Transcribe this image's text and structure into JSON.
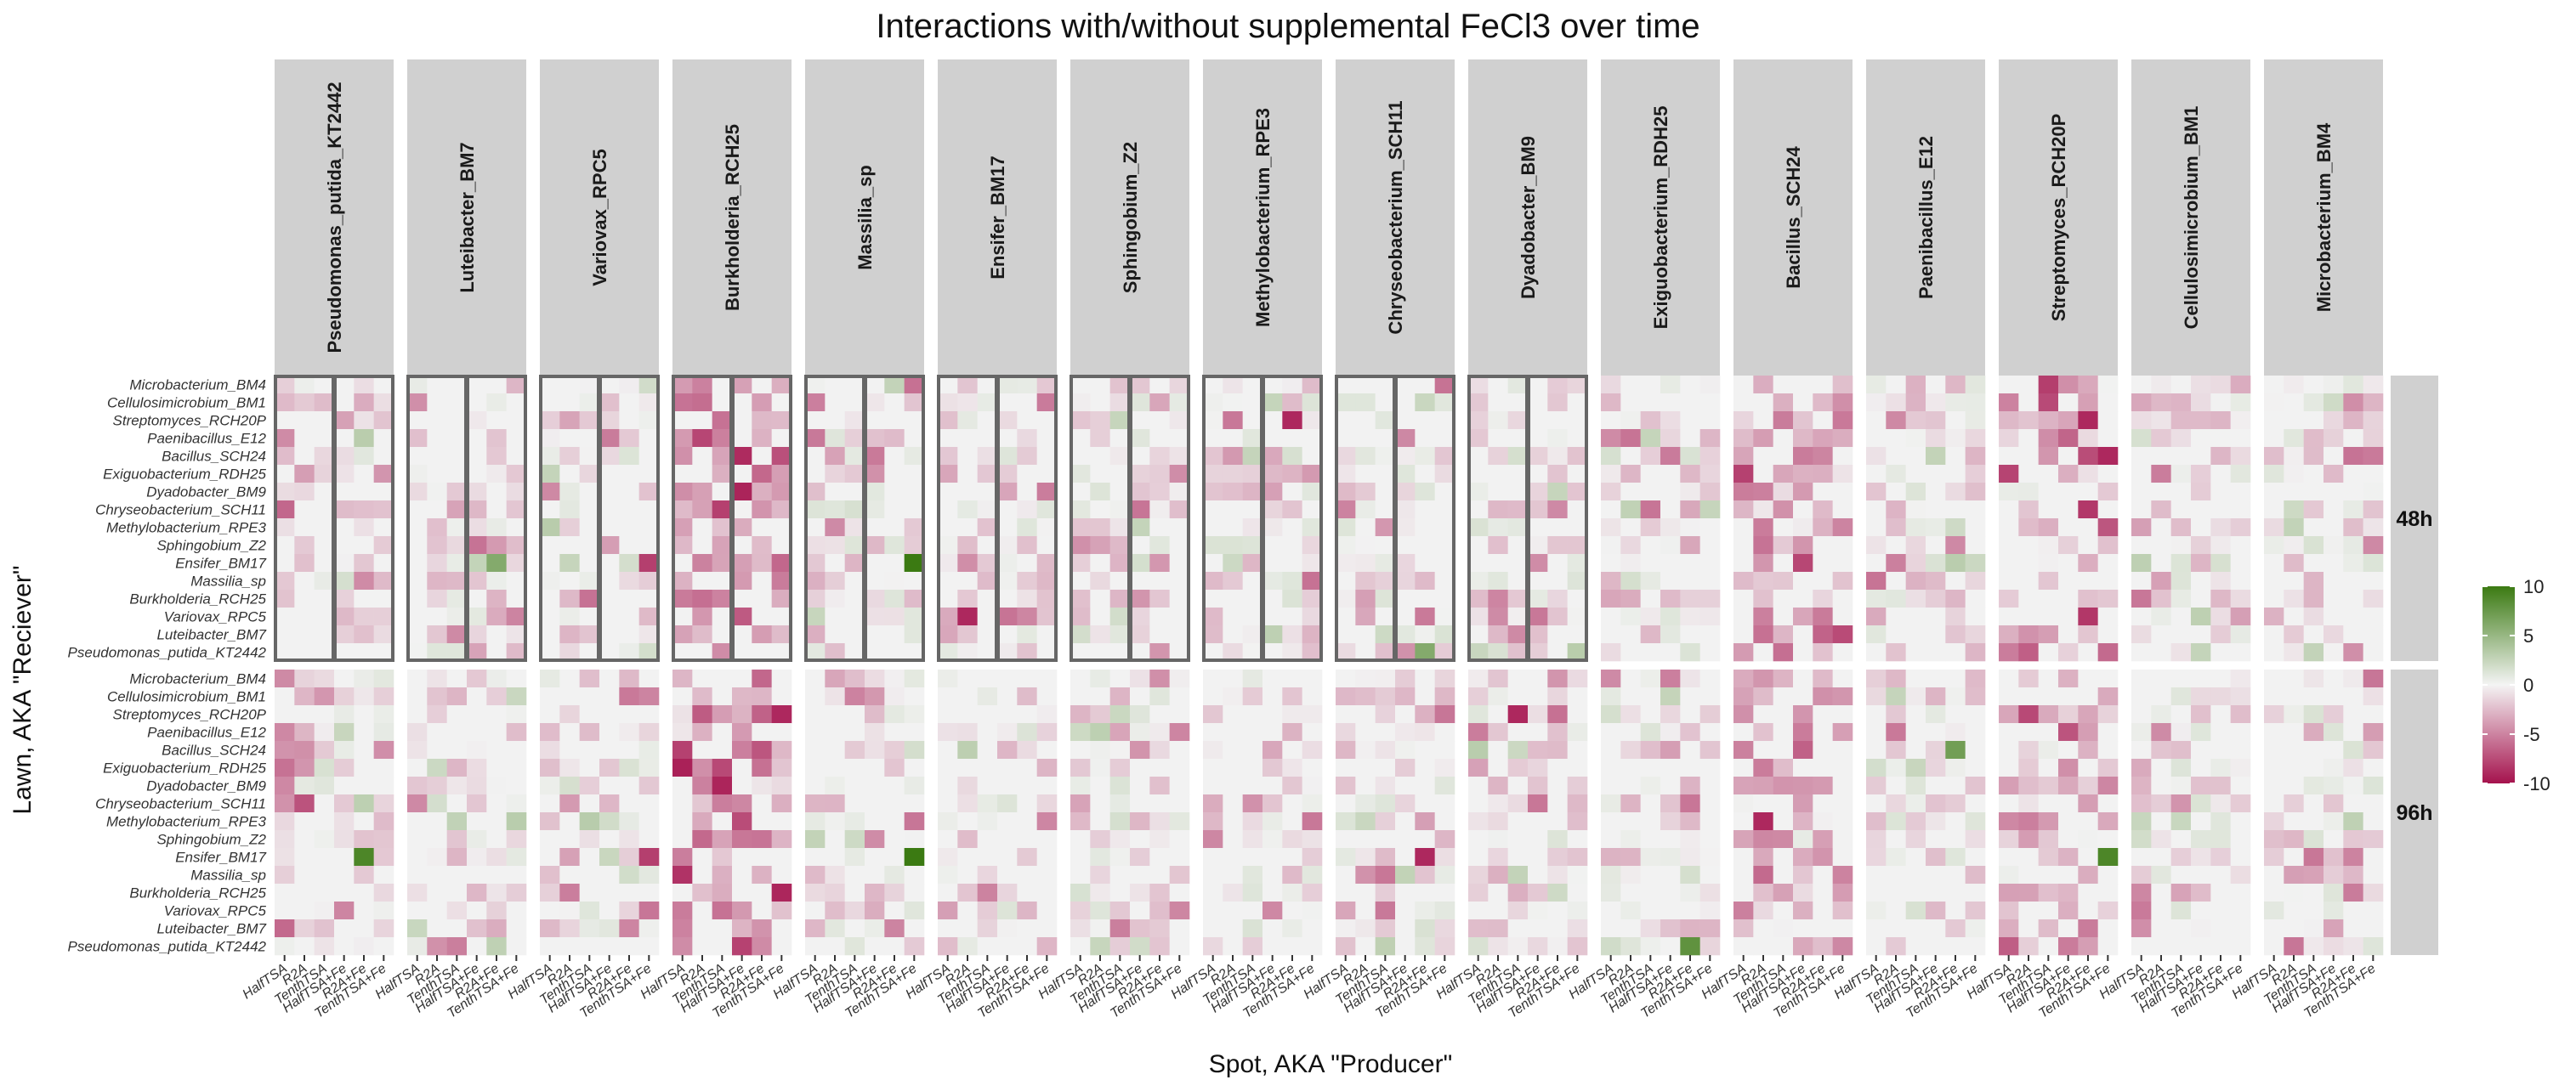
{
  "chart_data": {
    "type": "heatmap",
    "title": "Interactions with/without supplemental FeCl3 over time",
    "xlabel": "Spot, AKA \"Producer\"",
    "ylabel": "Lawn, AKA \"Reciever\"",
    "producers": [
      "Pseudomonas_putida_KT2442",
      "Luteibacter_BM7",
      "Variovax_RPC5",
      "Burkholderia_RCH25",
      "Massilia_sp",
      "Ensifer_BM17",
      "Sphingobium_Z2",
      "Methylobacterium_RPE3",
      "Chryseobacterium_SCH11",
      "Dyadobacter_BM9",
      "Exiguobacterium_RDH25",
      "Bacillus_SCH24",
      "Paenibacillus_E12",
      "Streptomyces_RCH20P",
      "Cellulosimicrobium_BM1",
      "Microbacterium_BM4"
    ],
    "conditions": [
      "HalfTSA",
      "R2A",
      "TenthTSA",
      "HalfTSA+Fe",
      "R2A+Fe",
      "TenthTSA+Fe"
    ],
    "receivers": [
      "Microbacterium_BM4",
      "Cellulosimicrobium_BM1",
      "Streptomyces_RCH20P",
      "Paenibacillus_E12",
      "Bacillus_SCH24",
      "Exiguobacterium_RDH25",
      "Dyadobacter_BM9",
      "Chryseobacterium_SCH11",
      "Methylobacterium_RPE3",
      "Sphingobium_Z2",
      "Ensifer_BM17",
      "Massilia_sp",
      "Burkholderia_RCH25",
      "Variovax_RPC5",
      "Luteibacter_BM7",
      "Pseudomonas_putida_KT2442"
    ],
    "timepoints": [
      "48h",
      "96h"
    ],
    "legend": {
      "position": "right",
      "min": -10,
      "max": 10,
      "ticks": [
        "10",
        "5",
        "0",
        "-5",
        "-10"
      ],
      "low_color": "#A5124D",
      "mid_color": "#F2F2F2",
      "high_color": "#3B7A12"
    },
    "boxed_panels_48h": [
      0,
      1,
      2,
      3,
      4,
      5,
      6,
      7,
      8,
      9
    ],
    "boxed_groups": [
      "HalfTSA, R2A, TenthTSA",
      "HalfTSA+Fe, R2A+Fe, TenthTSA+Fe"
    ],
    "highlighted_cells": [
      {
        "timepoint": "48h",
        "producer": "Methylobacterium_RPE3",
        "receiver": "Streptomyces_RCH20P",
        "condition": "R2A+Fe",
        "value": -9
      },
      {
        "timepoint": "48h",
        "producer": "Ensifer_BM17",
        "receiver": "Variovax_RPC5",
        "condition": "R2A",
        "value": -9
      },
      {
        "timepoint": "48h",
        "producer": "Massilia_sp",
        "receiver": "Ensifer_BM17",
        "condition": "TenthTSA+Fe",
        "value": 10
      },
      {
        "timepoint": "48h",
        "producer": "Luteibacter_BM7",
        "receiver": "Ensifer_BM17",
        "condition": "R2A+Fe",
        "value": 6
      },
      {
        "timepoint": "48h",
        "producer": "Variovax_RPC5",
        "receiver": "Ensifer_BM17",
        "condition": "TenthTSA+Fe",
        "value": -8
      },
      {
        "timepoint": "48h",
        "producer": "Streptomyces_RCH20P",
        "receiver": "Streptomyces_RCH20P",
        "condition": "R2A+Fe",
        "value": -9
      },
      {
        "timepoint": "48h",
        "producer": "Streptomyces_RCH20P",
        "receiver": "Bacillus_SCH24",
        "condition": "TenthTSA+Fe",
        "value": -9
      },
      {
        "timepoint": "48h",
        "producer": "Chryseobacterium_SCH11",
        "receiver": "Pseudomonas_putida_KT2442",
        "condition": "R2A+Fe",
        "value": 6
      },
      {
        "timepoint": "96h",
        "producer": "Burkholderia_RCH25",
        "receiver": "Streptomyces_RCH20P",
        "condition": "TenthTSA+Fe",
        "value": -9
      },
      {
        "timepoint": "96h",
        "producer": "Massilia_sp",
        "receiver": "Ensifer_BM17",
        "condition": "TenthTSA+Fe",
        "value": 10
      },
      {
        "timepoint": "96h",
        "producer": "Pseudomonas_putida_KT2442",
        "receiver": "Ensifer_BM17",
        "condition": "R2A+Fe",
        "value": 9
      },
      {
        "timepoint": "96h",
        "producer": "Streptomyces_RCH20P",
        "receiver": "Ensifer_BM17",
        "condition": "TenthTSA+Fe",
        "value": 9
      },
      {
        "timepoint": "96h",
        "producer": "Exiguobacterium_RDH25",
        "receiver": "Pseudomonas_putida_KT2442",
        "condition": "R2A+Fe",
        "value": 8
      },
      {
        "timepoint": "96h",
        "producer": "Paenibacillus_E12",
        "receiver": "Bacillus_SCH24",
        "condition": "R2A+Fe",
        "value": 7
      },
      {
        "timepoint": "96h",
        "producer": "Chryseobacterium_SCH11",
        "receiver": "Ensifer_BM17",
        "condition": "R2A+Fe",
        "value": -9
      },
      {
        "timepoint": "96h",
        "producer": "Bacillus_SCH24",
        "receiver": "Methylobacterium_RPE3",
        "condition": "R2A",
        "value": -9
      },
      {
        "timepoint": "96h",
        "producer": "Variovax_RPC5",
        "receiver": "Ensifer_BM17",
        "condition": "TenthTSA+Fe",
        "value": -8
      },
      {
        "timepoint": "96h",
        "producer": "Dyadobacter_BM9",
        "receiver": "Streptomyces_RCH20P",
        "condition": "TenthTSA",
        "value": -9
      }
    ]
  }
}
